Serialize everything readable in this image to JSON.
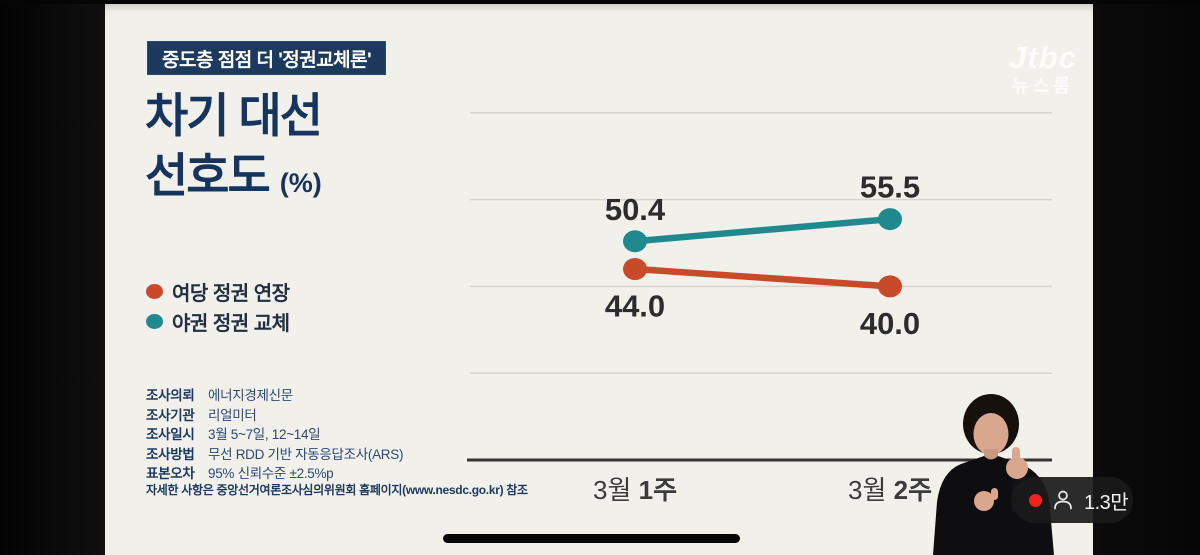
{
  "badge": {
    "text": "중도층 점점 더 '정권교체론'"
  },
  "title": {
    "line1": "차기 대선",
    "line2": "선호도",
    "unit": "(%)"
  },
  "legend": {
    "items": [
      {
        "label": "여당 정권 연장",
        "color": "#c84a28"
      },
      {
        "label": "야권 정권 교체",
        "color": "#20898f"
      }
    ]
  },
  "survey_info": {
    "rows": [
      {
        "label": "조사의뢰",
        "value": "에너지경제신문"
      },
      {
        "label": "조사기관",
        "value": "리얼미터"
      },
      {
        "label": "조사일시",
        "value": "3월 5~7일, 12~14일"
      },
      {
        "label": "조사방법",
        "value": "무선 RDD 기반 자동응답조사(ARS)"
      },
      {
        "label": "표본오차",
        "value": "95% 신뢰수준 ±2.5%p"
      }
    ],
    "footnote": "자세한 사항은 중앙선거여론조사심의위원회 홈페이지(www.nesdc.go.kr) 참조"
  },
  "watermark": {
    "logo": "Jtbc",
    "program": "뉴스룸"
  },
  "viewer_pill": {
    "count": "1.3만",
    "dot_color": "#f0231d"
  },
  "chart_data": {
    "type": "line",
    "title": "차기 대선 선호도 (%)",
    "categories": [
      "3월 1주",
      "3월 2주"
    ],
    "series": [
      {
        "name": "여당 정권 연장",
        "color": "#c84a28",
        "values": [
          44.0,
          40.0
        ],
        "label_position": "below"
      },
      {
        "name": "야권 정권 교체",
        "color": "#20898f",
        "values": [
          50.4,
          55.5
        ],
        "label_position": "above"
      }
    ],
    "ylim": [
      0,
      80
    ],
    "gridline_values": [
      20,
      40,
      60,
      80
    ],
    "grid": true,
    "legend_position": "left",
    "value_label_format": "one_decimal",
    "colors": {
      "value_label": "#2c2c2c",
      "tick_label": "#3b3b3b",
      "gridline": "#d7d4cc",
      "axis": "#35332f"
    }
  }
}
